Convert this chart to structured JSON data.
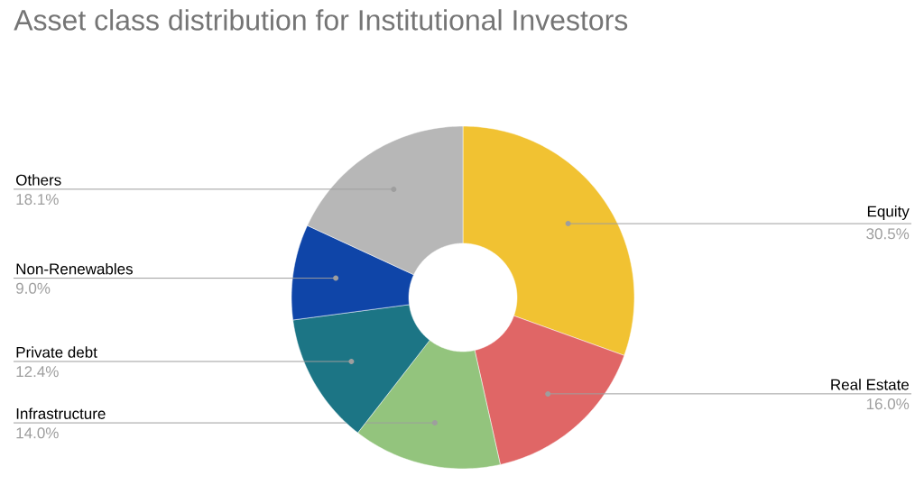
{
  "chart_data": {
    "type": "donut",
    "title": "Asset class distribution for Institutional Investors",
    "categories": [
      "Equity",
      "Real Estate",
      "Infrastructure",
      "Private debt",
      "Non-Renewables",
      "Others"
    ],
    "values": [
      30.5,
      16.0,
      14.0,
      12.4,
      9.0,
      18.1
    ],
    "value_labels": [
      "30.5%",
      "16.0%",
      "14.0%",
      "12.4%",
      "9.0%",
      "18.1%"
    ],
    "colors": [
      "#f1c232",
      "#e06666",
      "#93c47d",
      "#1c7585",
      "#0f45a8",
      "#b7b7b7"
    ]
  }
}
